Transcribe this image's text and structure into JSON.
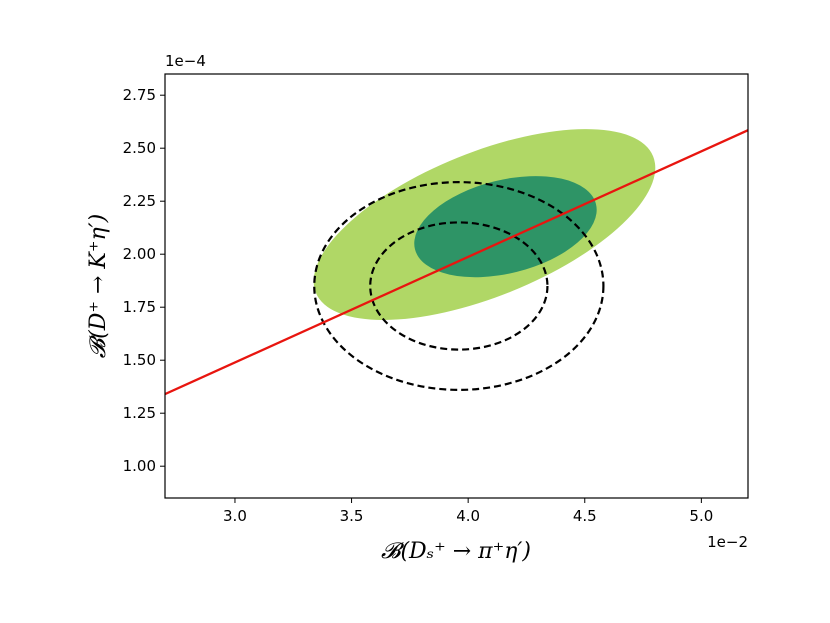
{
  "chart_data": {
    "type": "scatter",
    "xlabel": "𝓑(Dₛ⁺ → π⁺η′)",
    "ylabel": "𝓑(D⁺ → K⁺η′)",
    "x_offset_label": "1e−2",
    "y_offset_label": "1e−4",
    "xlim": [
      2.7,
      5.2
    ],
    "ylim": [
      0.85,
      2.85
    ],
    "x_ticks": [
      3.0,
      3.5,
      4.0,
      4.5,
      5.0
    ],
    "x_tick_labels": [
      "3.0",
      "3.5",
      "4.0",
      "4.5",
      "5.0"
    ],
    "y_ticks": [
      1.0,
      1.25,
      1.5,
      1.75,
      2.0,
      2.25,
      2.5,
      2.75
    ],
    "y_tick_labels": [
      "1.00",
      "1.25",
      "1.50",
      "1.75",
      "2.00",
      "2.25",
      "2.50",
      "2.75"
    ],
    "grid": false,
    "filled_ellipses": [
      {
        "level": "2sigma",
        "color": "#b0d766",
        "cx": 4.07,
        "cy": 2.14,
        "rx": 0.78,
        "ry": 0.34,
        "angle_deg": -22
      },
      {
        "level": "1sigma",
        "color": "#2e9466",
        "cx": 4.16,
        "cy": 2.13,
        "rx": 0.4,
        "ry": 0.22,
        "angle_deg": -14
      }
    ],
    "dashed_ellipses": [
      {
        "level": "1sigma",
        "color": "#000000",
        "cx": 3.96,
        "cy": 1.85,
        "rx": 0.38,
        "ry": 0.3
      },
      {
        "level": "2sigma",
        "color": "#000000",
        "cx": 3.96,
        "cy": 1.85,
        "rx": 0.62,
        "ry": 0.49
      }
    ],
    "line": {
      "color": "#e8150f",
      "points": [
        [
          2.7,
          1.34
        ],
        [
          5.2,
          2.585
        ]
      ]
    }
  }
}
